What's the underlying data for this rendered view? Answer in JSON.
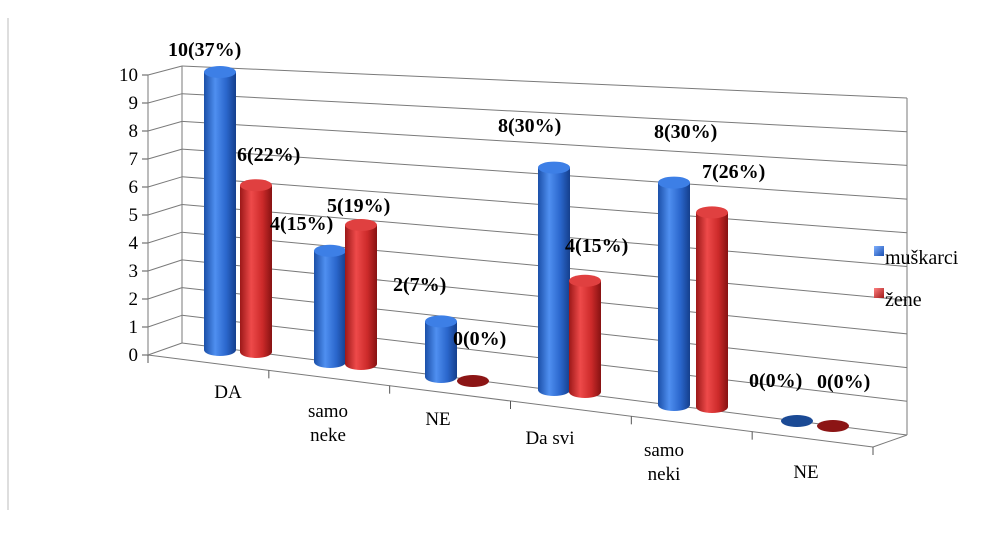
{
  "chart_data": {
    "type": "bar",
    "title": "",
    "xlabel": "",
    "ylabel": "",
    "ylim": [
      0,
      10
    ],
    "yticks": [
      "0",
      "1",
      "2",
      "3",
      "4",
      "5",
      "6",
      "7",
      "8",
      "9",
      "10"
    ],
    "grid": true,
    "legend_position": "right",
    "categories": [
      "DA",
      "samo neke",
      "NE",
      "Da svi",
      "samo neki",
      "NE"
    ],
    "series": [
      {
        "name": "muškarci",
        "color": "#2f6fd6",
        "values": [
          10,
          4,
          2,
          8,
          8,
          0
        ],
        "labels": [
          "10(37%)",
          "4(15%)",
          "2(7%)",
          "8(30%)",
          "8(30%)",
          "0(0%)"
        ]
      },
      {
        "name": "žene",
        "color": "#d93030",
        "values": [
          6,
          5,
          0,
          4,
          7,
          0
        ],
        "labels": [
          "6(22%)",
          "5(19%)",
          "0(0%)",
          "4(15%)",
          "7(26%)",
          "0(0%)"
        ]
      }
    ]
  }
}
